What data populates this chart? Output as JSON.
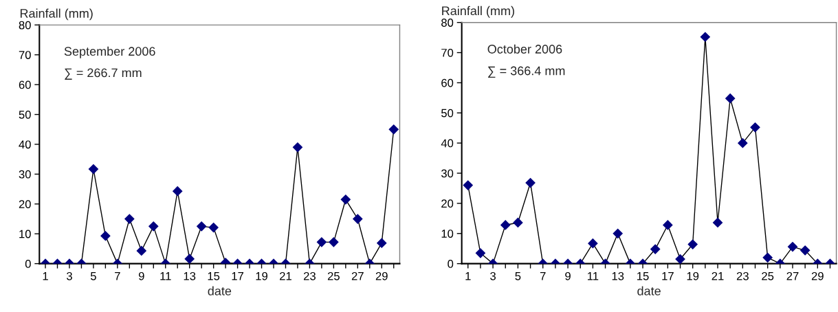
{
  "chart_data": [
    {
      "type": "line",
      "ylabel": "Rainfall (mm)",
      "xlabel": "date",
      "annotations": [
        "September 2006",
        "∑ = 266.7 mm"
      ],
      "marker": "diamond",
      "grid": false,
      "legend": false,
      "x": [
        1,
        2,
        3,
        4,
        5,
        6,
        7,
        8,
        9,
        10,
        11,
        12,
        13,
        14,
        15,
        16,
        17,
        18,
        19,
        20,
        21,
        22,
        23,
        24,
        25,
        26,
        27,
        28,
        29,
        30
      ],
      "series": [
        {
          "color": "#000080",
          "values": [
            0,
            0,
            0,
            0,
            31.7,
            9.3,
            0,
            15,
            4.3,
            12.5,
            0,
            24.3,
            1.6,
            12.5,
            12.1,
            0.3,
            0,
            0,
            0,
            0,
            0,
            39,
            0,
            7.2,
            7.2,
            21.5,
            15,
            0,
            6.9,
            45
          ]
        }
      ],
      "xlim": [
        0.5,
        30.5
      ],
      "xticks": [
        1,
        {
          "value": 2,
          "label": null
        },
        3,
        {
          "value": 4,
          "label": null
        },
        5,
        {
          "value": 6,
          "label": null
        },
        7,
        {
          "value": 8,
          "label": null
        },
        9,
        {
          "value": 10,
          "label": null
        },
        11,
        {
          "value": 12,
          "label": null
        },
        13,
        {
          "value": 14,
          "label": null
        },
        15,
        {
          "value": 16,
          "label": null
        },
        17,
        {
          "value": 18,
          "label": null
        },
        19,
        {
          "value": 20,
          "label": null
        },
        21,
        {
          "value": 22,
          "label": null
        },
        23,
        {
          "value": 24,
          "label": null
        },
        25,
        {
          "value": 26,
          "label": null
        },
        27,
        {
          "value": 28,
          "label": null
        },
        29,
        {
          "value": 30,
          "label": null
        }
      ],
      "ylim": [
        0,
        80
      ],
      "yticks": [
        0,
        10,
        20,
        30,
        40,
        50,
        60,
        70,
        80
      ]
    },
    {
      "type": "line",
      "ylabel": "Rainfall (mm)",
      "xlabel": "date",
      "annotations": [
        "October 2006",
        "∑ = 366.4 mm"
      ],
      "marker": "diamond",
      "grid": false,
      "legend": false,
      "x": [
        1,
        2,
        3,
        4,
        5,
        6,
        7,
        8,
        9,
        10,
        11,
        12,
        13,
        14,
        15,
        16,
        17,
        18,
        19,
        20,
        21,
        22,
        23,
        24,
        25,
        26,
        27,
        28,
        29,
        30
      ],
      "series": [
        {
          "color": "#000080",
          "values": [
            26,
            3.5,
            0,
            12.8,
            13.6,
            26.8,
            0,
            0,
            0,
            0,
            6.7,
            0,
            10,
            0,
            0,
            4.8,
            12.8,
            1.5,
            6.4,
            75.2,
            13.6,
            54.8,
            40,
            45.2,
            2,
            0,
            5.6,
            4.4,
            0,
            0
          ]
        }
      ],
      "xlim": [
        0.5,
        30.5
      ],
      "xticks": [
        1,
        {
          "value": 2,
          "label": null
        },
        3,
        {
          "value": 4,
          "label": null
        },
        5,
        {
          "value": 6,
          "label": null
        },
        7,
        {
          "value": 8,
          "label": null
        },
        9,
        {
          "value": 10,
          "label": null
        },
        11,
        {
          "value": 12,
          "label": null
        },
        13,
        {
          "value": 14,
          "label": null
        },
        15,
        {
          "value": 16,
          "label": null
        },
        17,
        {
          "value": 18,
          "label": null
        },
        19,
        {
          "value": 20,
          "label": null
        },
        21,
        {
          "value": 22,
          "label": null
        },
        23,
        {
          "value": 24,
          "label": null
        },
        25,
        {
          "value": 26,
          "label": null
        },
        27,
        {
          "value": 28,
          "label": null
        },
        29,
        {
          "value": 30,
          "label": null
        }
      ],
      "ylim": [
        0,
        80
      ],
      "yticks": [
        0,
        10,
        20,
        30,
        40,
        50,
        60,
        70,
        80
      ]
    }
  ]
}
